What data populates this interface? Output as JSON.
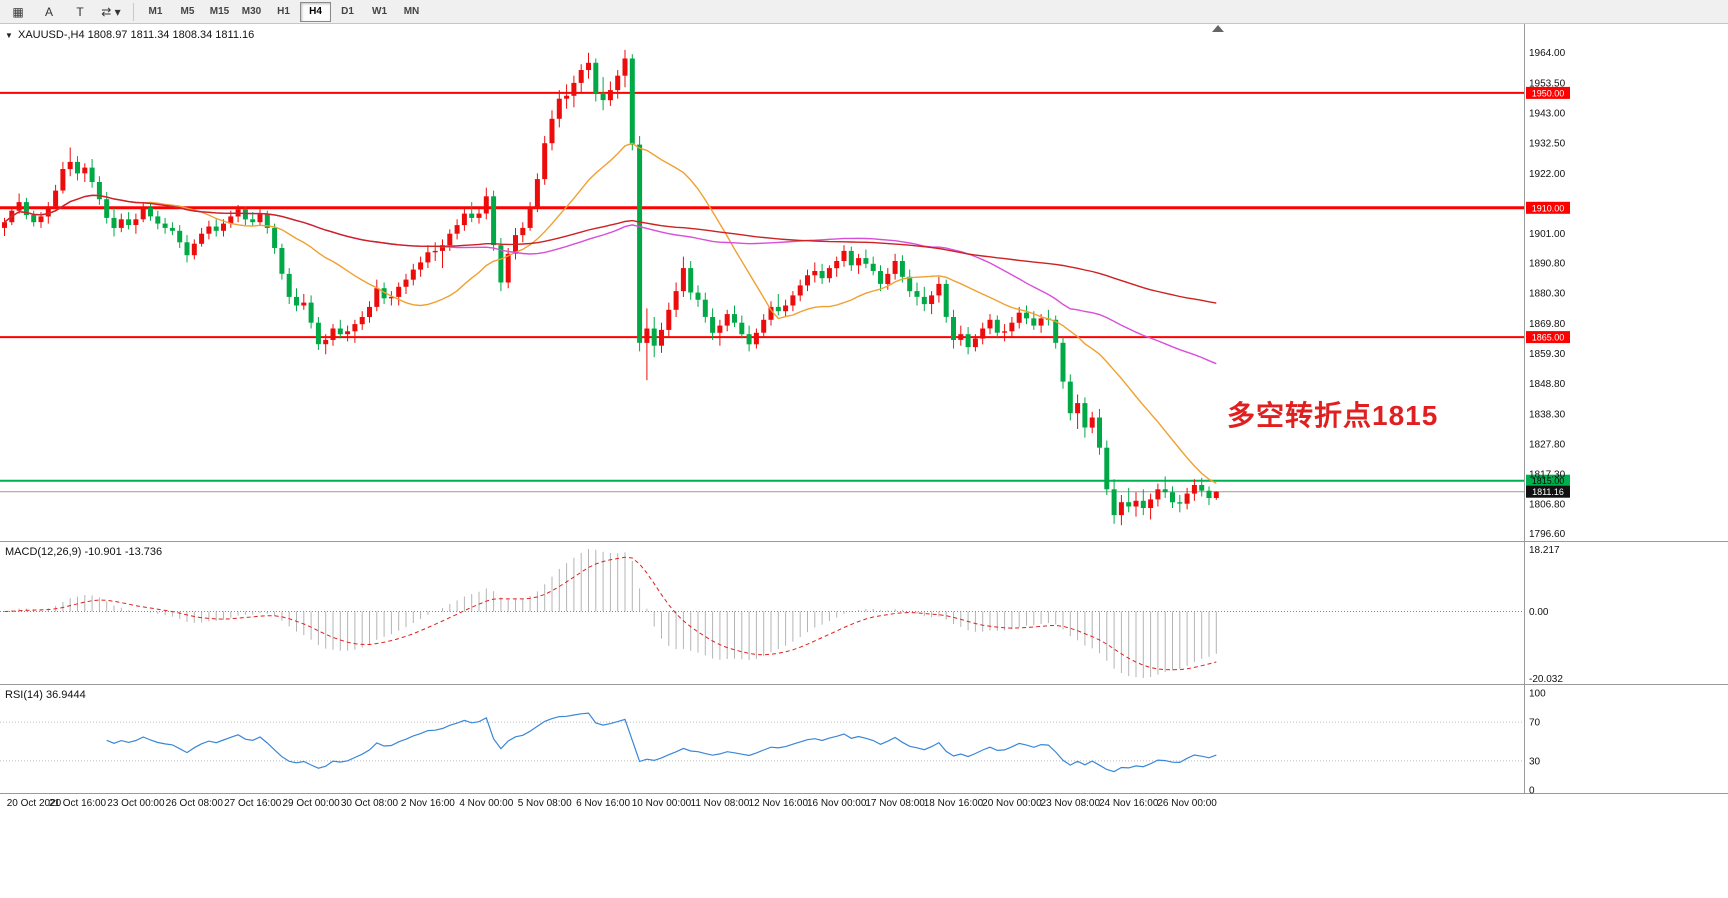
{
  "toolbar": {
    "tools": [
      {
        "name": "charts-tool-icon",
        "glyph": "▦"
      },
      {
        "name": "text-label-tool-icon",
        "glyph": "A"
      },
      {
        "name": "vertical-line-tool-icon",
        "glyph": "T"
      },
      {
        "name": "drawing-tools-dropdown-icon",
        "glyph": "⇄",
        "caret": "▾"
      }
    ],
    "timeframes": [
      "M1",
      "M5",
      "M15",
      "M30",
      "H1",
      "H4",
      "D1",
      "W1",
      "MN"
    ],
    "active_timeframe": "H4"
  },
  "chart": {
    "symbol_ohlc": "XAUUSD-,H4 1808.97 1811.34 1808.34 1811.16",
    "icons": {
      "symbol_marker": "▼"
    },
    "annotation": {
      "text": "多空转折点1815",
      "color": "#e02020"
    },
    "price_range": {
      "top": 1974.0,
      "bottom": 1794.0
    },
    "price_axis": [
      "1964.00",
      "1953.50",
      "1943.00",
      "1932.50",
      "1922.00",
      "1901.00",
      "1890.80",
      "1880.30",
      "1869.80",
      "1859.30",
      "1848.80",
      "1838.30",
      "1827.80",
      "1817.30",
      "1806.80",
      "1796.60"
    ],
    "hlines": [
      {
        "price": 1950.0,
        "label": "1950.00",
        "color": "#ff0000",
        "width": 2,
        "text_color": "#ffffff"
      },
      {
        "price": 1910.0,
        "label": "1910.00",
        "color": "#ff0000",
        "width": 3,
        "text_color": "#ffffff"
      },
      {
        "price": 1865.0,
        "label": "1865.00",
        "color": "#ff0000",
        "width": 2,
        "text_color": "#ffffff"
      },
      {
        "price": 1815.0,
        "label": "1815.00",
        "color": "#00b050",
        "width": 2,
        "text_color": "#000000"
      }
    ],
    "current_price": {
      "value": 1811.16,
      "label": "1811.16",
      "line_color": "#9a9a9a",
      "badge_bg": "#111111",
      "text_color": "#ffffff"
    },
    "colors": {
      "up": "#ec0c0c",
      "down": "#00a846"
    },
    "ma": [
      {
        "period": 20,
        "color": "#f0a030",
        "name": "ma-fast-orange"
      },
      {
        "period": 60,
        "color": "#d94fd9",
        "name": "ma-mid-magenta"
      },
      {
        "period": 120,
        "color": "#cc2222",
        "name": "ma-slow-red"
      }
    ],
    "candles": [
      [
        1903,
        1906.5,
        1900.2,
        1905
      ],
      [
        1905,
        1910,
        1904,
        1909
      ],
      [
        1909,
        1915,
        1908,
        1912
      ],
      [
        1912,
        1913.5,
        1906,
        1907.5
      ],
      [
        1907.5,
        1909,
        1903.5,
        1905
      ],
      [
        1905,
        1908.5,
        1903,
        1907
      ],
      [
        1907,
        1912,
        1904.5,
        1910.5
      ],
      [
        1910.5,
        1918,
        1909.5,
        1916
      ],
      [
        1916,
        1926,
        1915,
        1923.5
      ],
      [
        1923.5,
        1931,
        1921,
        1926
      ],
      [
        1926,
        1928,
        1919.5,
        1922
      ],
      [
        1922,
        1925.5,
        1919,
        1924
      ],
      [
        1924,
        1927,
        1917,
        1919
      ],
      [
        1919,
        1921,
        1911,
        1913
      ],
      [
        1913,
        1915.5,
        1904.5,
        1906.5
      ],
      [
        1906.5,
        1910,
        1900,
        1903
      ],
      [
        1903,
        1908,
        1901.5,
        1906
      ],
      [
        1906,
        1908.5,
        1902.5,
        1904
      ],
      [
        1904,
        1908,
        1901,
        1906
      ],
      [
        1906,
        1912,
        1905,
        1910
      ],
      [
        1910,
        1911.5,
        1905.5,
        1907
      ],
      [
        1907,
        1909,
        1902.5,
        1904.5
      ],
      [
        1904.5,
        1906.5,
        1901,
        1903
      ],
      [
        1903,
        1905,
        1900.5,
        1902
      ],
      [
        1902,
        1904,
        1896,
        1898
      ],
      [
        1898,
        1900.5,
        1891,
        1893.5
      ],
      [
        1893.5,
        1899,
        1892,
        1897.5
      ],
      [
        1897.5,
        1903,
        1896.5,
        1901
      ],
      [
        1901,
        1905.5,
        1899,
        1903.5
      ],
      [
        1903.5,
        1906,
        1900,
        1902
      ],
      [
        1902,
        1906,
        1900,
        1904.5
      ],
      [
        1904.5,
        1909,
        1903,
        1907
      ],
      [
        1907,
        1911,
        1905,
        1909.5
      ],
      [
        1909.5,
        1910.5,
        1904,
        1906
      ],
      [
        1906,
        1908.5,
        1903.5,
        1905
      ],
      [
        1905,
        1909.5,
        1904,
        1908
      ],
      [
        1908,
        1909,
        1901,
        1903
      ],
      [
        1903,
        1904.5,
        1894,
        1896
      ],
      [
        1896,
        1897.5,
        1885,
        1887
      ],
      [
        1887,
        1889,
        1876.5,
        1879
      ],
      [
        1879,
        1882,
        1874,
        1876
      ],
      [
        1876,
        1880,
        1874.5,
        1877
      ],
      [
        1877,
        1879.5,
        1868,
        1870
      ],
      [
        1870,
        1872,
        1860.5,
        1862.5
      ],
      [
        1862.5,
        1866,
        1859,
        1864
      ],
      [
        1864,
        1869.5,
        1862,
        1868
      ],
      [
        1868,
        1871,
        1864.5,
        1866
      ],
      [
        1866,
        1869,
        1863.5,
        1867
      ],
      [
        1867,
        1871,
        1863,
        1869.5
      ],
      [
        1869.5,
        1874,
        1867.5,
        1872
      ],
      [
        1872,
        1877.5,
        1870,
        1875.5
      ],
      [
        1875.5,
        1885,
        1874,
        1882
      ],
      [
        1882,
        1884,
        1876.5,
        1878.5
      ],
      [
        1878.5,
        1881,
        1876,
        1879
      ],
      [
        1879,
        1884,
        1876,
        1882.5
      ],
      [
        1882.5,
        1887,
        1880,
        1885
      ],
      [
        1885,
        1890.5,
        1883,
        1888.5
      ],
      [
        1888.5,
        1893,
        1886,
        1891
      ],
      [
        1891,
        1897,
        1889,
        1894.5
      ],
      [
        1894.5,
        1898,
        1891.5,
        1895
      ],
      [
        1895,
        1899,
        1889,
        1897
      ],
      [
        1897,
        1902.5,
        1895,
        1901
      ],
      [
        1901,
        1906,
        1899,
        1904
      ],
      [
        1904,
        1910,
        1902,
        1908
      ],
      [
        1908,
        1912,
        1905,
        1906.5
      ],
      [
        1906.5,
        1910.5,
        1904.5,
        1908
      ],
      [
        1908,
        1917,
        1906,
        1914
      ],
      [
        1914,
        1916,
        1895,
        1897
      ],
      [
        1897,
        1899.5,
        1881,
        1884
      ],
      [
        1884,
        1896,
        1882,
        1894
      ],
      [
        1894,
        1903,
        1892,
        1900.5
      ],
      [
        1900.5,
        1905,
        1898,
        1903
      ],
      [
        1903,
        1912,
        1902,
        1910
      ],
      [
        1910,
        1922,
        1908.5,
        1920
      ],
      [
        1920,
        1935,
        1918,
        1932.5
      ],
      [
        1932.5,
        1944,
        1930,
        1941
      ],
      [
        1941,
        1951,
        1938,
        1948
      ],
      [
        1948,
        1953,
        1944.5,
        1949
      ],
      [
        1949,
        1956,
        1945,
        1953.5
      ],
      [
        1953.5,
        1960,
        1950,
        1958
      ],
      [
        1958,
        1964,
        1955,
        1960.5
      ],
      [
        1960.5,
        1962,
        1947,
        1950
      ],
      [
        1950,
        1955.5,
        1944,
        1947.5
      ],
      [
        1947.5,
        1954,
        1945.5,
        1951
      ],
      [
        1951,
        1958,
        1948,
        1956
      ],
      [
        1956,
        1965,
        1952,
        1962
      ],
      [
        1962,
        1963.5,
        1930,
        1932
      ],
      [
        1932,
        1935,
        1860,
        1863
      ],
      [
        1863,
        1875,
        1850,
        1868
      ],
      [
        1868,
        1872,
        1858,
        1862
      ],
      [
        1862,
        1870,
        1859.5,
        1867.5
      ],
      [
        1867.5,
        1877,
        1865,
        1874.5
      ],
      [
        1874.5,
        1884,
        1872,
        1881
      ],
      [
        1881,
        1893,
        1879,
        1889
      ],
      [
        1889,
        1891.5,
        1878,
        1880.5
      ],
      [
        1880.5,
        1883,
        1875.5,
        1878
      ],
      [
        1878,
        1880.5,
        1870,
        1872
      ],
      [
        1872,
        1875,
        1864,
        1866.5
      ],
      [
        1866.5,
        1871,
        1862,
        1869
      ],
      [
        1869,
        1874.5,
        1867,
        1873
      ],
      [
        1873,
        1876,
        1868.5,
        1870
      ],
      [
        1870,
        1872.5,
        1864.5,
        1866
      ],
      [
        1866,
        1869,
        1860,
        1862.5
      ],
      [
        1862.5,
        1868,
        1861,
        1866.5
      ],
      [
        1866.5,
        1873,
        1865,
        1871
      ],
      [
        1871,
        1877.5,
        1869,
        1875.5
      ],
      [
        1875.5,
        1880,
        1872.5,
        1874
      ],
      [
        1874,
        1878,
        1872,
        1876
      ],
      [
        1876,
        1881,
        1874,
        1879.5
      ],
      [
        1879.5,
        1885,
        1877.5,
        1883
      ],
      [
        1883,
        1888.5,
        1881,
        1886.5
      ],
      [
        1886.5,
        1891,
        1884,
        1888
      ],
      [
        1888,
        1890.5,
        1883.5,
        1885.5
      ],
      [
        1885.5,
        1890,
        1884,
        1889
      ],
      [
        1889,
        1893,
        1886,
        1891.5
      ],
      [
        1891.5,
        1897,
        1889.5,
        1895
      ],
      [
        1895,
        1896.5,
        1888,
        1890
      ],
      [
        1890,
        1894,
        1887,
        1892.5
      ],
      [
        1892.5,
        1895.5,
        1889,
        1890.5
      ],
      [
        1890.5,
        1893,
        1886.5,
        1888
      ],
      [
        1888,
        1890,
        1881,
        1883.5
      ],
      [
        1883.5,
        1889,
        1881.5,
        1887
      ],
      [
        1887,
        1894,
        1885,
        1891.5
      ],
      [
        1891.5,
        1893.5,
        1884,
        1886
      ],
      [
        1886,
        1888.5,
        1879,
        1881
      ],
      [
        1881,
        1884,
        1876,
        1879
      ],
      [
        1879,
        1882.5,
        1874,
        1876.5
      ],
      [
        1876.5,
        1881,
        1873,
        1879.5
      ],
      [
        1879.5,
        1886,
        1877,
        1883.5
      ],
      [
        1883.5,
        1885,
        1870,
        1872
      ],
      [
        1872,
        1874.5,
        1861,
        1864
      ],
      [
        1864,
        1869,
        1862,
        1866
      ],
      [
        1866,
        1868.5,
        1859,
        1861.5
      ],
      [
        1861.5,
        1866,
        1860,
        1864.5
      ],
      [
        1864.5,
        1870,
        1862.5,
        1868
      ],
      [
        1868,
        1873,
        1866,
        1871
      ],
      [
        1871,
        1872.5,
        1864.5,
        1866.5
      ],
      [
        1866.5,
        1869.5,
        1863.5,
        1867
      ],
      [
        1867,
        1872,
        1865,
        1870
      ],
      [
        1870,
        1875.5,
        1868,
        1873.5
      ],
      [
        1873.5,
        1876,
        1869.5,
        1871.5
      ],
      [
        1871.5,
        1874,
        1867.5,
        1869
      ],
      [
        1869,
        1873,
        1866.5,
        1871.5
      ],
      [
        1871.5,
        1874.5,
        1869,
        1871
      ],
      [
        1871,
        1872.5,
        1861,
        1863
      ],
      [
        1863,
        1865,
        1847,
        1849.5
      ],
      [
        1849.5,
        1852,
        1836,
        1838.5
      ],
      [
        1838.5,
        1845,
        1833,
        1842
      ],
      [
        1842,
        1844,
        1830,
        1833.5
      ],
      [
        1833.5,
        1839,
        1831.5,
        1837
      ],
      [
        1837,
        1840,
        1824,
        1826.5
      ],
      [
        1826.5,
        1829,
        1810,
        1812
      ],
      [
        1812,
        1815.5,
        1800,
        1803
      ],
      [
        1803,
        1810,
        1799.5,
        1807.5
      ],
      [
        1807.5,
        1812.5,
        1804,
        1806
      ],
      [
        1806,
        1811,
        1802.5,
        1808
      ],
      [
        1808,
        1812,
        1803,
        1805.5
      ],
      [
        1805.5,
        1810.5,
        1801.5,
        1808.5
      ],
      [
        1808.5,
        1814,
        1806,
        1812
      ],
      [
        1812,
        1816.5,
        1809,
        1811
      ],
      [
        1811,
        1813,
        1805.5,
        1807.5
      ],
      [
        1807.5,
        1810,
        1804,
        1807
      ],
      [
        1807,
        1812.5,
        1805,
        1810.5
      ],
      [
        1810.5,
        1815.5,
        1808,
        1813.5
      ],
      [
        1813.5,
        1816,
        1809.5,
        1811.5
      ],
      [
        1811.5,
        1813,
        1806.5,
        1808.97
      ],
      [
        1808.97,
        1811.34,
        1808.34,
        1811.16
      ]
    ],
    "time_axis": [
      {
        "label": "20 Oct 2020",
        "bar": 0
      },
      {
        "label": "21 Oct 16:00",
        "bar": 10
      },
      {
        "label": "23 Oct 00:00",
        "bar": 18
      },
      {
        "label": "26 Oct 08:00",
        "bar": 26
      },
      {
        "label": "27 Oct 16:00",
        "bar": 34
      },
      {
        "label": "29 Oct 00:00",
        "bar": 42
      },
      {
        "label": "30 Oct 08:00",
        "bar": 50
      },
      {
        "label": "2 Nov 16:00",
        "bar": 58
      },
      {
        "label": "4 Nov 00:00",
        "bar": 66
      },
      {
        "label": "5 Nov 08:00",
        "bar": 74
      },
      {
        "label": "6 Nov 16:00",
        "bar": 82
      },
      {
        "label": "10 Nov 00:00",
        "bar": 90
      },
      {
        "label": "11 Nov 08:00",
        "bar": 98
      },
      {
        "label": "12 Nov 16:00",
        "bar": 106
      },
      {
        "label": "16 Nov 00:00",
        "bar": 114
      },
      {
        "label": "17 Nov 08:00",
        "bar": 122
      },
      {
        "label": "18 Nov 16:00",
        "bar": 130
      },
      {
        "label": "20 Nov 00:00",
        "bar": 138
      },
      {
        "label": "23 Nov 08:00",
        "bar": 146
      },
      {
        "label": "24 Nov 16:00",
        "bar": 154
      },
      {
        "label": "26 Nov 00:00",
        "bar": 162
      }
    ]
  },
  "macd": {
    "label": "MACD(12,26,9) -10.901 -13.736",
    "params": {
      "fast": 12,
      "slow": 26,
      "signal": 9
    },
    "scale": [
      "18.217",
      "0.00",
      "-20.032"
    ],
    "histogram_color": "#b4b4b4",
    "signal_color": "#e02020"
  },
  "rsi": {
    "label": "RSI(14) 36.9444",
    "period": 14,
    "scale": [
      "100",
      "70",
      "30",
      "0"
    ],
    "levels": [
      70,
      30
    ],
    "line_color": "#3a87d8"
  }
}
